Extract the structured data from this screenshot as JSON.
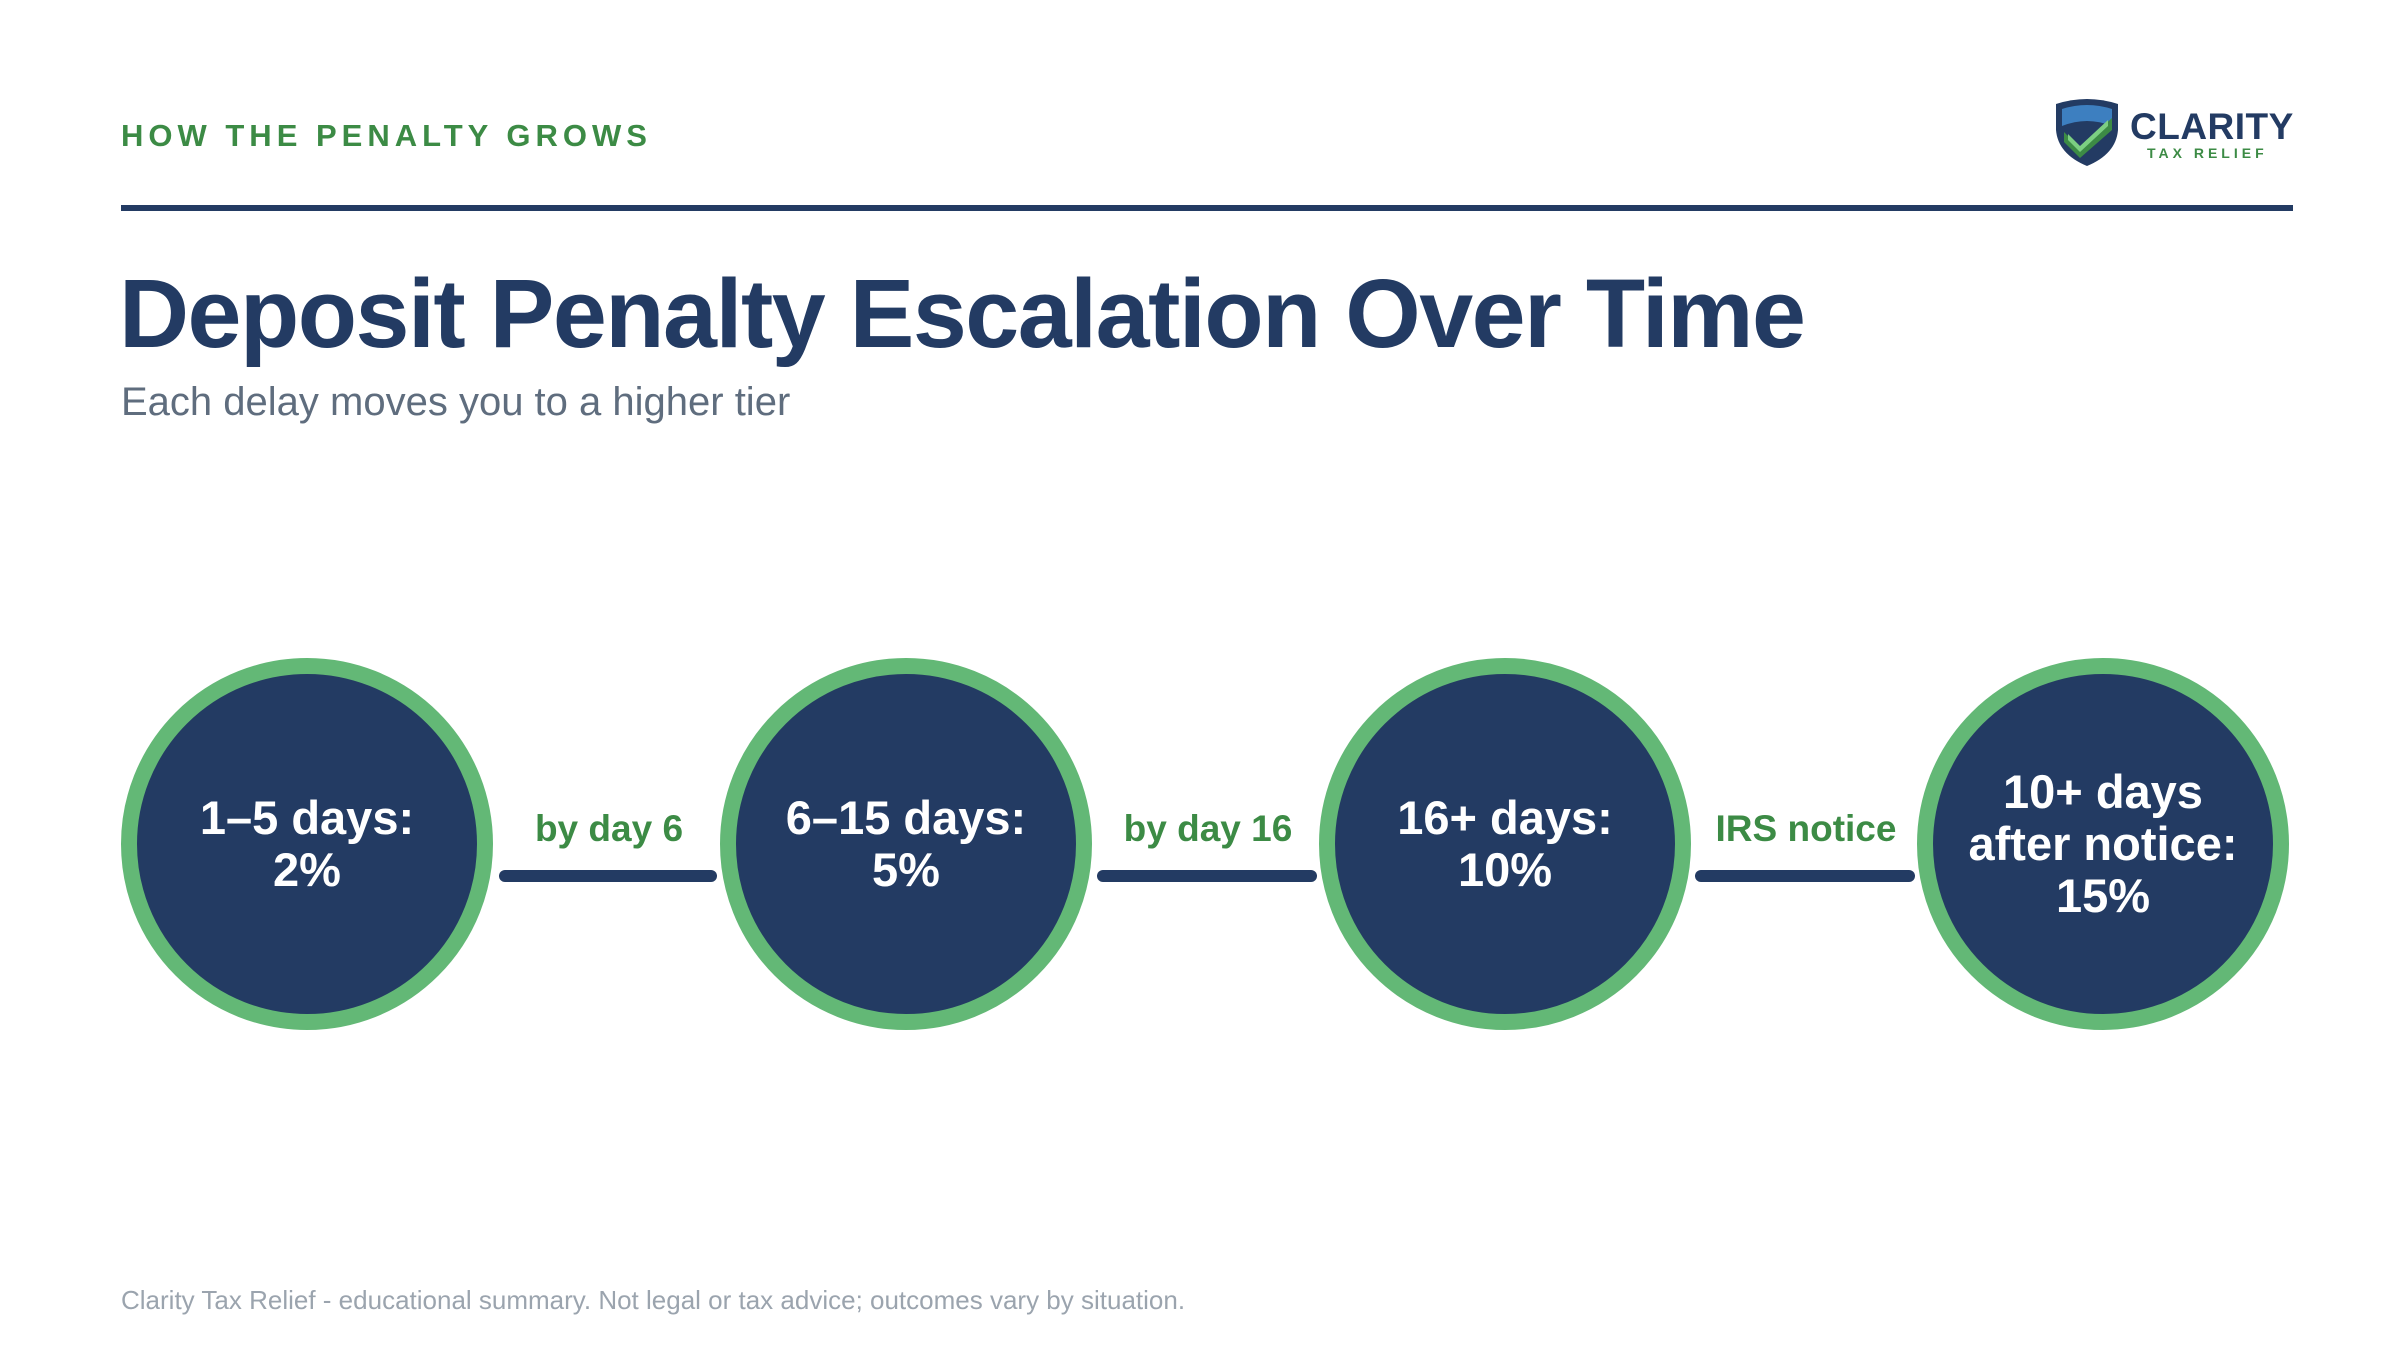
{
  "header": {
    "eyebrow": "HOW THE PENALTY GROWS",
    "logo": {
      "name": "CLARITY",
      "tagline": "TAX RELIEF",
      "icon": "shield-check-icon"
    }
  },
  "title": "Deposit Penalty Escalation Over Time",
  "subtitle": "Each delay moves you to a higher tier",
  "stages": [
    {
      "label": "1–5 days:\n2%"
    },
    {
      "label": "6–15 days:\n5%"
    },
    {
      "label": "16+ days:\n10%"
    },
    {
      "label": "10+ days\nafter notice:\n15%"
    }
  ],
  "connectors": [
    {
      "label": "by day 6"
    },
    {
      "label": "by day 16"
    },
    {
      "label": "IRS notice"
    }
  ],
  "footer": "Clarity Tax Relief - educational summary. Not legal or tax advice; outcomes vary by situation.",
  "colors": {
    "navy": "#233b63",
    "green": "#3c8b45",
    "ring_green": "#63b876"
  }
}
